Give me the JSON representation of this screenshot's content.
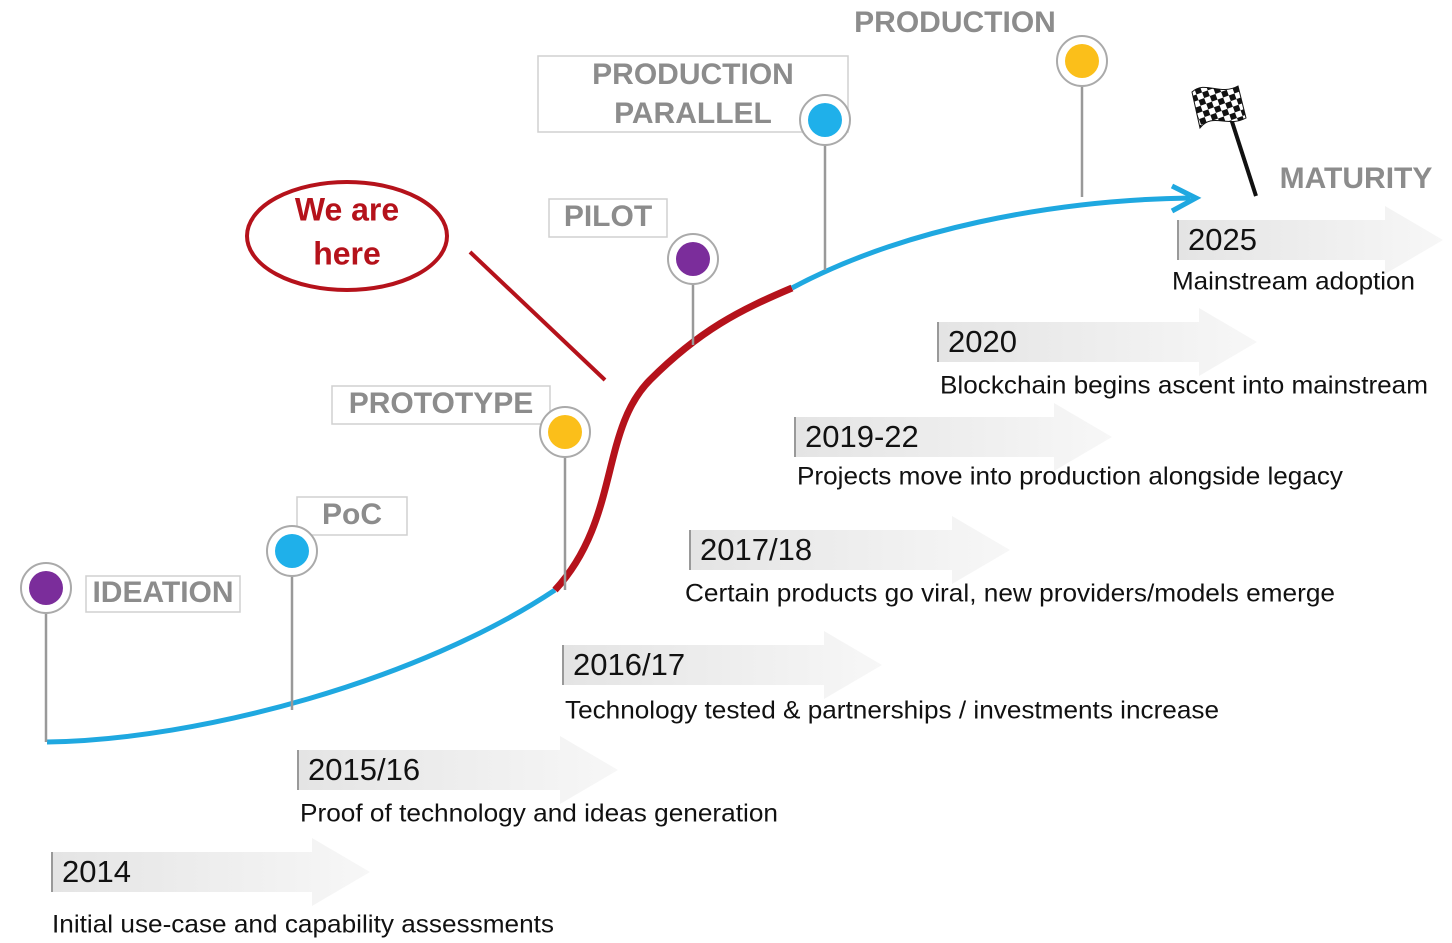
{
  "callout_lines": [
    "We are",
    "here"
  ],
  "stages": [
    {
      "lines": [
        "IDEATION"
      ],
      "color": "#7b2d9b"
    },
    {
      "lines": [
        "PoC"
      ],
      "color": "#1fb0ea"
    },
    {
      "lines": [
        "PROTOTYPE"
      ],
      "color": "#fbbf1a"
    },
    {
      "lines": [
        "PILOT"
      ],
      "color": "#7b2d9b"
    },
    {
      "lines": [
        "PRODUCTION",
        "PARALLEL"
      ],
      "color": "#1fb0ea"
    },
    {
      "lines": [
        "PRODUCTION"
      ],
      "color": "#fbbf1a"
    }
  ],
  "end_label": "MATURITY",
  "timeline": [
    {
      "year": "2014",
      "description": "Initial use-case and capability assessments"
    },
    {
      "year": "2015/16",
      "description": "Proof of technology and ideas generation"
    },
    {
      "year": "2016/17",
      "description": "Technology tested & partnerships / investments increase"
    },
    {
      "year": "2017/18",
      "description": "Certain products go viral, new providers/models emerge"
    },
    {
      "year": "2019-22",
      "description": "Projects move into production alongside legacy"
    },
    {
      "year": "2020",
      "description": "Blockchain begins ascent into mainstream"
    },
    {
      "year": "2025",
      "description": "Mainstream adoption"
    }
  ]
}
